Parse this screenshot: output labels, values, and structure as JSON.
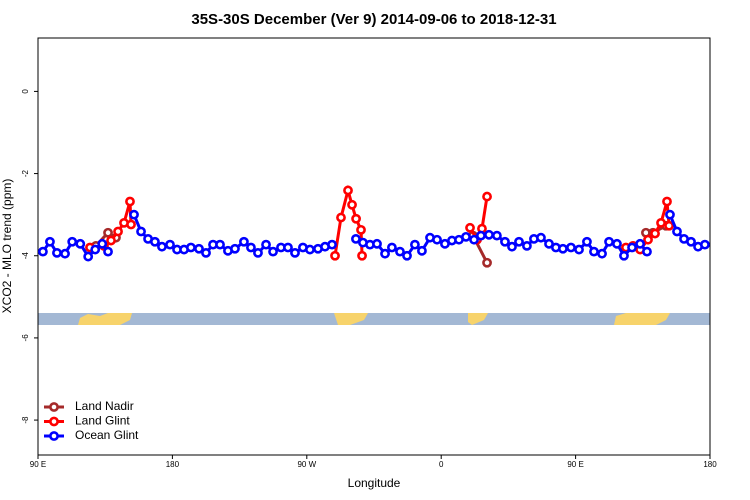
{
  "chart_data": {
    "type": "line",
    "title": "35S-30S December (Ver 9)   2014-09-06 to 2018-12-31",
    "xlabel": "Longitude",
    "ylabel": "XCO2 - MLO trend (ppm)",
    "xlim": [
      90,
      540
    ],
    "xticks": [
      {
        "value": 90,
        "label": "90 E"
      },
      {
        "value": 180,
        "label": "180"
      },
      {
        "value": 270,
        "label": "90 W"
      },
      {
        "value": 360,
        "label": "0"
      },
      {
        "value": 450,
        "label": "90 E"
      },
      {
        "value": 540,
        "label": "180"
      }
    ],
    "ylim": [
      -8.85,
      1.3
    ],
    "yticks": [
      0,
      -2,
      -4,
      -6,
      -8
    ],
    "legend": "bottom-left",
    "series": [
      {
        "name": "Land Nadir",
        "color": "#a52a2a",
        "x": [
          128.8,
          136.9,
          142.2,
          null,
          381.3,
          390.7,
          null,
          497.1,
          501.8,
          510.5
        ],
        "values": [
          -3.76,
          -3.44,
          -3.56,
          null,
          -3.51,
          -4.17,
          null,
          -3.44,
          -3.44,
          -3.27
        ]
      },
      {
        "name": "Land Glint",
        "color": "#ff0000",
        "x": [
          124.8,
          134.2,
          138.9,
          143.6,
          147.6,
          151.6,
          152.3,
          null,
          288.9,
          292.9,
          297.6,
          300.3,
          303.0,
          306.3,
          307.0,
          null,
          379.3,
          384.0,
          387.3,
          390.7,
          null,
          483.7,
          488.4,
          493.2,
          498.5,
          503.2,
          507.2,
          511.2,
          512.6
        ],
        "values": [
          -3.8,
          -3.76,
          -3.63,
          -3.41,
          -3.2,
          -2.68,
          -3.24,
          null,
          -4.0,
          -3.07,
          -2.41,
          -2.76,
          -3.1,
          -3.37,
          -4.0,
          null,
          -3.32,
          -3.61,
          -3.34,
          -2.56,
          null,
          -3.8,
          -3.76,
          -3.85,
          -3.61,
          -3.46,
          -3.2,
          -2.68,
          -3.27
        ]
      },
      {
        "name": "Ocean Glint",
        "color": "#0000ff",
        "x": [
          93.3,
          98.0,
          102.7,
          108.1,
          112.9,
          118.3,
          123.6,
          128.3,
          133.0,
          136.9,
          null,
          154.3,
          159.0,
          163.7,
          168.3,
          173.0,
          178.4,
          183.1,
          187.8,
          192.4,
          197.8,
          202.5,
          207.2,
          211.9,
          217.2,
          221.9,
          227.9,
          232.6,
          237.3,
          242.7,
          247.4,
          252.7,
          257.4,
          262.1,
          267.4,
          272.1,
          277.5,
          282.2,
          286.9,
          null,
          302.9,
          307.6,
          312.3,
          317.0,
          322.4,
          327.0,
          332.4,
          337.1,
          342.4,
          347.1,
          352.5,
          357.2,
          362.5,
          367.2,
          371.9,
          376.6,
          382.0,
          386.6,
          392.0,
          397.3,
          402.7,
          407.4,
          412.1,
          417.4,
          422.1,
          426.8,
          432.2,
          436.8,
          441.5,
          446.9,
          452.3,
          457.6,
          462.3,
          467.7,
          472.4,
          477.7,
          482.4,
          487.8,
          493.2,
          497.8,
          null,
          513.2,
          517.9,
          522.6,
          527.3,
          532.0,
          536.6
        ],
        "values": [
          -3.9,
          -3.66,
          -3.93,
          -3.95,
          -3.66,
          -3.71,
          -4.02,
          -3.85,
          -3.71,
          -3.9,
          null,
          -3.0,
          -3.41,
          -3.59,
          -3.66,
          -3.78,
          -3.73,
          -3.85,
          -3.85,
          -3.8,
          -3.83,
          -3.93,
          -3.73,
          -3.73,
          -3.88,
          -3.83,
          -3.66,
          -3.8,
          -3.93,
          -3.73,
          -3.9,
          -3.8,
          -3.8,
          -3.93,
          -3.8,
          -3.85,
          -3.83,
          -3.78,
          -3.73,
          null,
          -3.59,
          -3.68,
          -3.73,
          -3.71,
          -3.95,
          -3.8,
          -3.9,
          -4.0,
          -3.73,
          -3.88,
          -3.56,
          -3.61,
          -3.71,
          -3.63,
          -3.61,
          -3.54,
          -3.61,
          -3.51,
          -3.49,
          -3.51,
          -3.66,
          -3.78,
          -3.66,
          -3.76,
          -3.59,
          -3.56,
          -3.71,
          -3.8,
          -3.83,
          -3.8,
          -3.85,
          -3.66,
          -3.9,
          -3.95,
          -3.66,
          -3.71,
          -4.0,
          -3.8,
          -3.71,
          -3.9,
          null,
          -3.0,
          -3.41,
          -3.59,
          -3.66,
          -3.78,
          -3.73
        ]
      }
    ]
  }
}
